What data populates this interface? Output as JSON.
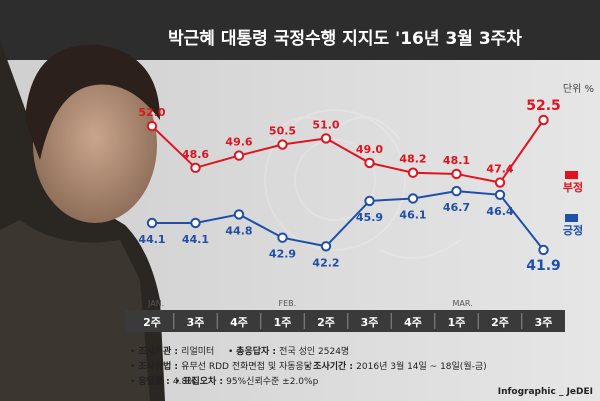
{
  "title": "박근혜 대통령 국정수행 지지도 '16년 3월 3주차",
  "unit": "단위 %",
  "credit": "Infographic _ JeDEI",
  "colors": {
    "negative": "#e0141e",
    "positive": "#1f4fa8",
    "header": "#2b2b2b",
    "axis_bar": "#3a3a3a"
  },
  "month_labels": [
    {
      "label": "JAN.",
      "at": 0
    },
    {
      "label": "FEB.",
      "at": 3
    },
    {
      "label": "MAR.",
      "at": 7
    }
  ],
  "notes": [
    {
      "key": "조사기관 : ",
      "value": "리얼미터"
    },
    {
      "key": "총응답자 : ",
      "value": "전국 성인 2524명"
    },
    {
      "key": "조사방법 : ",
      "value": "유무선 RDD 전화면접 및 자동응답"
    },
    {
      "key": "조사기간 : ",
      "value": "2016년 3월 14일 ~ 18일(월-금)"
    },
    {
      "key": "응답률 : ",
      "value": "4.8%"
    },
    {
      "key": "표집오차 : ",
      "value": "95%신뢰수준 ±2.0%p"
    }
  ],
  "chart_data": {
    "type": "line",
    "title": "박근혜 대통령 국정수행 지지도 '16년 3월 3주차",
    "categories": [
      "2주",
      "3주",
      "4주",
      "1주",
      "2주",
      "3주",
      "4주",
      "1주",
      "2주",
      "3주"
    ],
    "series": [
      {
        "name": "부정",
        "values": [
          52.0,
          48.6,
          49.6,
          50.5,
          51.0,
          49.0,
          48.2,
          48.1,
          47.4,
          52.5
        ]
      },
      {
        "name": "긍정",
        "values": [
          44.1,
          44.1,
          44.8,
          42.9,
          42.2,
          45.9,
          46.1,
          46.7,
          46.4,
          41.9
        ]
      }
    ],
    "value_labels": {
      "부정": [
        "52.0",
        "48.6",
        "49.6",
        "50.5",
        "51.0",
        "49.0",
        "48.2",
        "48.1",
        "47.4",
        "52.5"
      ],
      "긍정": [
        "44.1",
        "44.1",
        "44.8",
        "42.9",
        "42.2",
        "45.9",
        "46.1",
        "46.7",
        "46.4",
        "41.9"
      ]
    },
    "legend_position": "right"
  }
}
